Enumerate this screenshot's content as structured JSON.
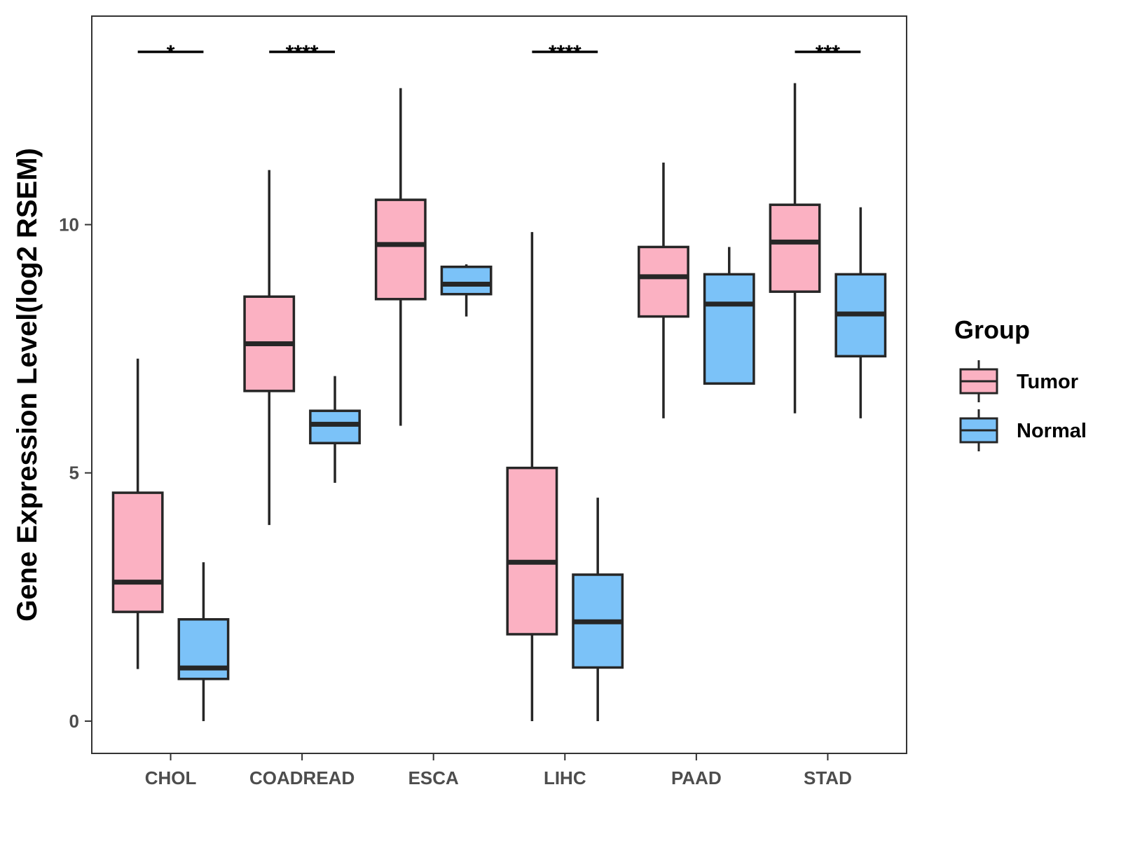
{
  "chart_data": {
    "type": "boxplot",
    "title": "",
    "xlabel": "",
    "ylabel": "Gene Expression Level(log2 RSEM)",
    "ylim": [
      -0.65,
      14.2
    ],
    "yticks": [
      0,
      5,
      10
    ],
    "grid": false,
    "legend": {
      "title": "Group",
      "position": "right",
      "entries": [
        {
          "name": "Tumor",
          "color": "#FBB1C2"
        },
        {
          "name": "Normal",
          "color": "#7BC2F8"
        }
      ]
    },
    "categories": [
      "CHOL",
      "COADREAD",
      "ESCA",
      "LIHC",
      "PAAD",
      "STAD"
    ],
    "series": [
      {
        "name": "Tumor",
        "color": "#FBB1C2",
        "boxes": [
          {
            "min": 1.05,
            "q1": 2.2,
            "median": 2.8,
            "q3": 4.6,
            "max": 7.3
          },
          {
            "min": 3.95,
            "q1": 6.65,
            "median": 7.6,
            "q3": 8.55,
            "max": 11.1
          },
          {
            "min": 5.95,
            "q1": 8.5,
            "median": 9.6,
            "q3": 10.5,
            "max": 12.75
          },
          {
            "min": 0.0,
            "q1": 1.75,
            "median": 3.2,
            "q3": 5.1,
            "max": 9.85
          },
          {
            "min": 6.1,
            "q1": 8.15,
            "median": 8.95,
            "q3": 9.55,
            "max": 11.25
          },
          {
            "min": 6.2,
            "q1": 8.65,
            "median": 9.65,
            "q3": 10.4,
            "max": 12.85
          }
        ]
      },
      {
        "name": "Normal",
        "color": "#7BC2F8",
        "boxes": [
          {
            "min": 0.0,
            "q1": 0.85,
            "median": 1.07,
            "q3": 2.05,
            "max": 3.2
          },
          {
            "min": 4.8,
            "q1": 5.6,
            "median": 5.98,
            "q3": 6.25,
            "max": 6.95
          },
          {
            "min": 8.15,
            "q1": 8.6,
            "median": 8.8,
            "q3": 9.15,
            "max": 9.2
          },
          {
            "min": 0.0,
            "q1": 1.08,
            "median": 2.0,
            "q3": 2.95,
            "max": 4.5
          },
          {
            "min": null,
            "q1": 6.8,
            "median": 8.4,
            "q3": 9.0,
            "max": 9.55
          },
          {
            "min": 6.1,
            "q1": 7.35,
            "median": 8.2,
            "q3": 9.0,
            "max": 10.35
          }
        ]
      }
    ],
    "significance": [
      {
        "category": "CHOL",
        "label": "*"
      },
      {
        "category": "COADREAD",
        "label": "****"
      },
      {
        "category": "LIHC",
        "label": "****"
      },
      {
        "category": "STAD",
        "label": "***"
      }
    ]
  }
}
